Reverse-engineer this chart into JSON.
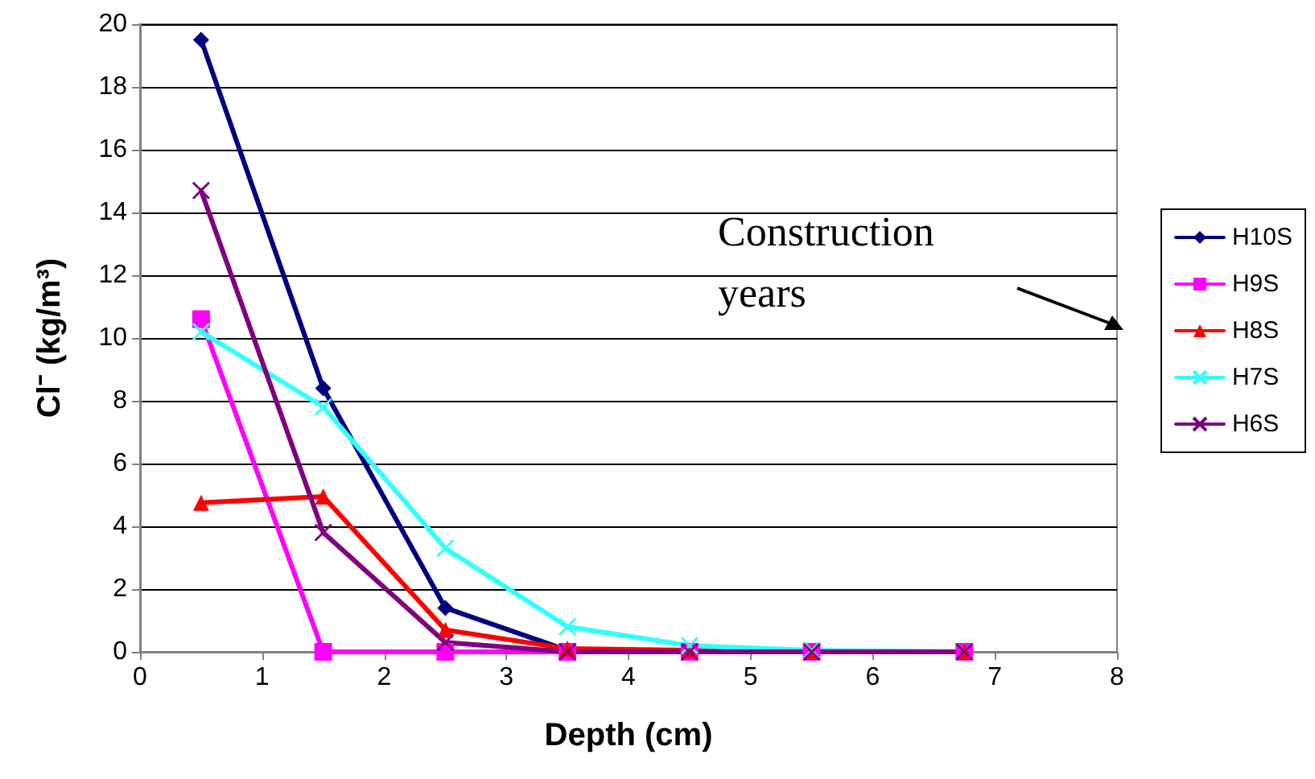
{
  "chart_data": {
    "type": "line",
    "xlabel": "Depth (cm)",
    "ylabel": "Cl⁻ (kg/m³)",
    "annotations": [
      "Construction years"
    ],
    "x": [
      0.5,
      1.5,
      2.5,
      3.5,
      4.5,
      5.5,
      6.75
    ],
    "xlim": [
      0,
      8
    ],
    "xticks": [
      0,
      1,
      2,
      3,
      4,
      5,
      6,
      7,
      8
    ],
    "ylim": [
      0,
      20
    ],
    "yticks": [
      0,
      2,
      4,
      6,
      8,
      10,
      12,
      14,
      16,
      18,
      20
    ],
    "grid": "y",
    "legend": "right",
    "line_style": "solid",
    "series": [
      {
        "name": "H10S",
        "color": "#000080",
        "marker": "diamond",
        "values": [
          19.5,
          8.4,
          1.4,
          0.05,
          0,
          0,
          0
        ]
      },
      {
        "name": "H9S",
        "color": "#ff00ff",
        "marker": "square",
        "values": [
          10.6,
          0,
          0,
          0,
          0,
          0,
          0
        ]
      },
      {
        "name": "H8S",
        "color": "#ff0000",
        "marker": "triangle",
        "values": [
          4.75,
          4.95,
          0.7,
          0.1,
          0.05,
          0,
          0
        ]
      },
      {
        "name": "H7S",
        "color": "#33ffff",
        "marker": "cross",
        "values": [
          10.2,
          7.8,
          3.3,
          0.8,
          0.2,
          0.05,
          0
        ]
      },
      {
        "name": "H6S",
        "color": "#800080",
        "marker": "cross",
        "values": [
          14.7,
          3.8,
          0.3,
          0,
          0,
          0,
          0
        ]
      }
    ]
  }
}
